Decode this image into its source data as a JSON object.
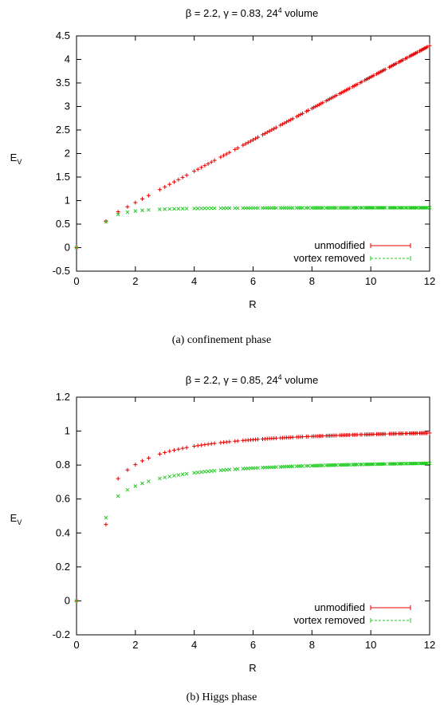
{
  "colors": {
    "unmodified": "#e60000",
    "vortex_removed": "#22cc22"
  },
  "chart_data": [
    {
      "type": "scatter",
      "title": "β = 2.2, γ = 0.83, 24",
      "title_sup": "4",
      "title_suffix": " volume",
      "xlabel": "R",
      "ylabel": "E",
      "ylabel_sub": "V",
      "xlim": [
        0,
        12
      ],
      "ylim": [
        -0.5,
        4.5
      ],
      "xticks": [
        "0",
        "2",
        "4",
        "6",
        "8",
        "10",
        "12"
      ],
      "yticks": [
        "-0.5",
        "0",
        "0.5",
        "1",
        "1.5",
        "2",
        "2.5",
        "3",
        "3.5",
        "4",
        "4.5"
      ],
      "caption": "(a) confinement phase",
      "legend_position": "bottom-right",
      "grid": false,
      "series": [
        {
          "name": "unmodified",
          "model": {
            "kind": "linear",
            "sigma": 0.3335,
            "c": 0.29,
            "first_value": 0.56
          }
        },
        {
          "name": "vortex removed",
          "model": {
            "kind": "plateau",
            "plateau": 0.85,
            "a": 0.29,
            "first_value": 0.55
          }
        }
      ]
    },
    {
      "type": "scatter",
      "title": "β = 2.2, γ = 0.85, 24",
      "title_sup": "4",
      "title_suffix": " volume",
      "xlabel": "R",
      "ylabel": "E",
      "ylabel_sub": "V",
      "xlim": [
        0,
        12
      ],
      "ylim": [
        -0.2,
        1.2
      ],
      "xticks": [
        "0",
        "2",
        "4",
        "6",
        "8",
        "10",
        "12"
      ],
      "yticks": [
        "-0.2",
        "0",
        "0.2",
        "0.4",
        "0.6",
        "0.8",
        "1",
        "1.2"
      ],
      "caption": "(b) Higgs phase",
      "legend_position": "bottom-right",
      "grid": false,
      "series": [
        {
          "name": "unmodified",
          "model": {
            "kind": "saturating",
            "plateau": 1.03,
            "a": 0.5,
            "c": 0.2,
            "first_value": 0.45
          }
        },
        {
          "name": "vortex removed",
          "model": {
            "kind": "saturating",
            "plateau": 0.84,
            "a": 0.36,
            "c": 0.2,
            "first_value": 0.49
          }
        }
      ]
    }
  ]
}
